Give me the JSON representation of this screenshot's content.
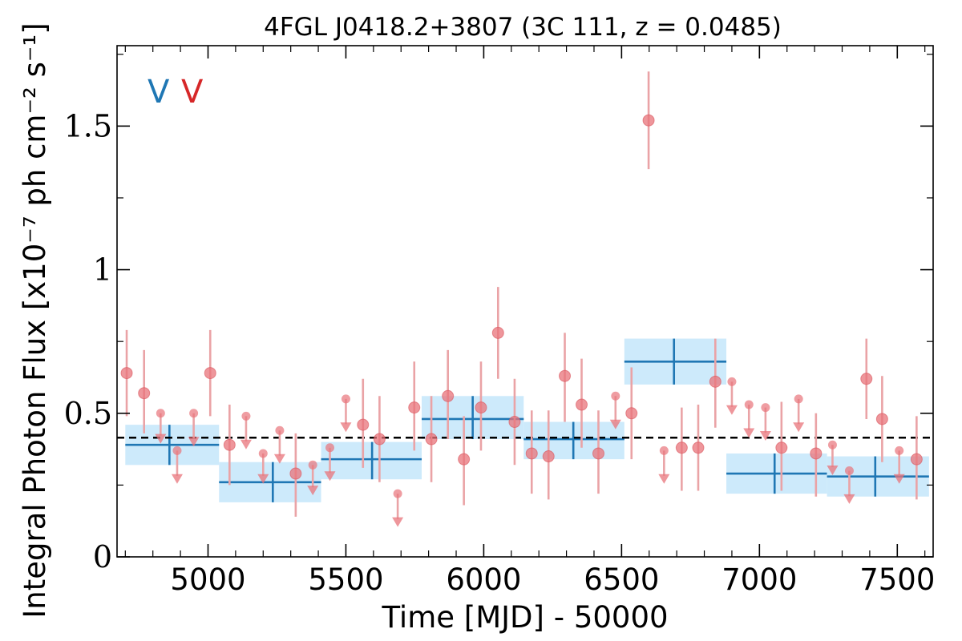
{
  "chart_data": {
    "type": "scatter",
    "title": "4FGL J0418.2+3807 (3C 111, z = 0.0485)",
    "xlabel": "Time [MJD] - 50000",
    "ylabel": "Integral Photon Flux [x10⁻⁷ ph cm⁻² s⁻¹]",
    "xlim": [
      4670,
      7630
    ],
    "ylim": [
      0,
      1.78
    ],
    "x_ticks": [
      5000,
      5500,
      6000,
      6500,
      7000,
      7500
    ],
    "x_tick_labels": [
      "5000",
      "5500",
      "6000",
      "6500",
      "7000",
      "7500"
    ],
    "y_ticks": [
      0,
      0.5,
      1,
      1.5
    ],
    "y_tick_labels": [
      "0",
      "0.5",
      "1",
      "1.5"
    ],
    "mean_flux": 0.415,
    "variability_flags": [
      {
        "text": "V",
        "color": "#1f77b4"
      },
      {
        "text": "V",
        "color": "#d62728"
      }
    ],
    "colors": {
      "points": "#e8737a",
      "errorbars": "#eaa3a6",
      "blocks": "#1f77b4",
      "block_fill": "#cdeafb",
      "mean_line": "#000000"
    },
    "series": [
      {
        "kind": "detections",
        "points": [
          {
            "x": 4705,
            "y": 0.64,
            "lo": 0.49,
            "hi": 0.79
          },
          {
            "x": 4768,
            "y": 0.57,
            "lo": 0.43,
            "hi": 0.72
          },
          {
            "x": 5008,
            "y": 0.64,
            "lo": 0.49,
            "hi": 0.79
          },
          {
            "x": 5078,
            "y": 0.39,
            "lo": 0.25,
            "hi": 0.53
          },
          {
            "x": 5318,
            "y": 0.29,
            "lo": 0.14,
            "hi": 0.43
          },
          {
            "x": 5562,
            "y": 0.46,
            "lo": 0.31,
            "hi": 0.62
          },
          {
            "x": 5622,
            "y": 0.41,
            "lo": 0.26,
            "hi": 0.56
          },
          {
            "x": 5748,
            "y": 0.52,
            "lo": 0.37,
            "hi": 0.68
          },
          {
            "x": 5810,
            "y": 0.41,
            "lo": 0.26,
            "hi": 0.56
          },
          {
            "x": 5870,
            "y": 0.56,
            "lo": 0.41,
            "hi": 0.72
          },
          {
            "x": 5928,
            "y": 0.34,
            "lo": 0.18,
            "hi": 0.49
          },
          {
            "x": 5990,
            "y": 0.52,
            "lo": 0.37,
            "hi": 0.68
          },
          {
            "x": 6052,
            "y": 0.78,
            "lo": 0.62,
            "hi": 0.94
          },
          {
            "x": 6112,
            "y": 0.47,
            "lo": 0.32,
            "hi": 0.62
          },
          {
            "x": 6174,
            "y": 0.36,
            "lo": 0.22,
            "hi": 0.51
          },
          {
            "x": 6235,
            "y": 0.35,
            "lo": 0.2,
            "hi": 0.51
          },
          {
            "x": 6294,
            "y": 0.63,
            "lo": 0.47,
            "hi": 0.78
          },
          {
            "x": 6355,
            "y": 0.53,
            "lo": 0.38,
            "hi": 0.69
          },
          {
            "x": 6416,
            "y": 0.36,
            "lo": 0.22,
            "hi": 0.51
          },
          {
            "x": 6536,
            "y": 0.5,
            "lo": 0.34,
            "hi": 0.66
          },
          {
            "x": 6598,
            "y": 1.52,
            "lo": 1.35,
            "hi": 1.69
          },
          {
            "x": 6718,
            "y": 0.38,
            "lo": 0.23,
            "hi": 0.52
          },
          {
            "x": 6778,
            "y": 0.38,
            "lo": 0.23,
            "hi": 0.53
          },
          {
            "x": 6840,
            "y": 0.61,
            "lo": 0.45,
            "hi": 0.76
          },
          {
            "x": 7080,
            "y": 0.38,
            "lo": 0.23,
            "hi": 0.54
          },
          {
            "x": 7205,
            "y": 0.36,
            "lo": 0.21,
            "hi": 0.5
          },
          {
            "x": 7388,
            "y": 0.62,
            "lo": 0.48,
            "hi": 0.76
          },
          {
            "x": 7445,
            "y": 0.48,
            "lo": 0.33,
            "hi": 0.63
          },
          {
            "x": 7570,
            "y": 0.34,
            "lo": 0.2,
            "hi": 0.49
          }
        ]
      },
      {
        "kind": "upper_limits",
        "points": [
          {
            "x": 4828,
            "y": 0.5,
            "tip": 0.4
          },
          {
            "x": 4888,
            "y": 0.37,
            "tip": 0.26
          },
          {
            "x": 4948,
            "y": 0.5,
            "tip": 0.39
          },
          {
            "x": 5138,
            "y": 0.49,
            "tip": 0.38
          },
          {
            "x": 5200,
            "y": 0.36,
            "tip": 0.26
          },
          {
            "x": 5260,
            "y": 0.44,
            "tip": 0.33
          },
          {
            "x": 5380,
            "y": 0.32,
            "tip": 0.22
          },
          {
            "x": 5442,
            "y": 0.38,
            "tip": 0.27
          },
          {
            "x": 5500,
            "y": 0.55,
            "tip": 0.44
          },
          {
            "x": 5688,
            "y": 0.22,
            "tip": 0.11
          },
          {
            "x": 6654,
            "y": 0.37,
            "tip": 0.26
          },
          {
            "x": 6900,
            "y": 0.61,
            "tip": 0.5
          },
          {
            "x": 6962,
            "y": 0.53,
            "tip": 0.42
          },
          {
            "x": 7022,
            "y": 0.52,
            "tip": 0.41
          },
          {
            "x": 7142,
            "y": 0.55,
            "tip": 0.44
          },
          {
            "x": 7265,
            "y": 0.39,
            "tip": 0.29
          },
          {
            "x": 7326,
            "y": 0.3,
            "tip": 0.19
          },
          {
            "x": 7507,
            "y": 0.37,
            "tip": 0.26
          },
          {
            "x": 6478,
            "y": 0.56,
            "tip": 0.45
          }
        ]
      },
      {
        "kind": "bayesian_blocks",
        "blocks": [
          {
            "x0": 4700,
            "x1": 5040,
            "y": 0.39,
            "y_lo": 0.32,
            "y_hi": 0.46,
            "xc": 4860
          },
          {
            "x0": 5040,
            "x1": 5410,
            "y": 0.26,
            "y_lo": 0.19,
            "y_hi": 0.33,
            "xc": 5235
          },
          {
            "x0": 5410,
            "x1": 5775,
            "y": 0.34,
            "y_lo": 0.27,
            "y_hi": 0.4,
            "xc": 5595
          },
          {
            "x0": 5775,
            "x1": 6145,
            "y": 0.48,
            "y_lo": 0.41,
            "y_hi": 0.56,
            "xc": 5960
          },
          {
            "x0": 6145,
            "x1": 6510,
            "y": 0.41,
            "y_lo": 0.34,
            "y_hi": 0.47,
            "xc": 6325
          },
          {
            "x0": 6510,
            "x1": 6880,
            "y": 0.68,
            "y_lo": 0.6,
            "y_hi": 0.76,
            "xc": 6690
          },
          {
            "x0": 6880,
            "x1": 7245,
            "y": 0.29,
            "y_lo": 0.22,
            "y_hi": 0.36,
            "xc": 7055
          },
          {
            "x0": 7245,
            "x1": 7615,
            "y": 0.28,
            "y_lo": 0.21,
            "y_hi": 0.35,
            "xc": 7420
          }
        ]
      }
    ]
  }
}
